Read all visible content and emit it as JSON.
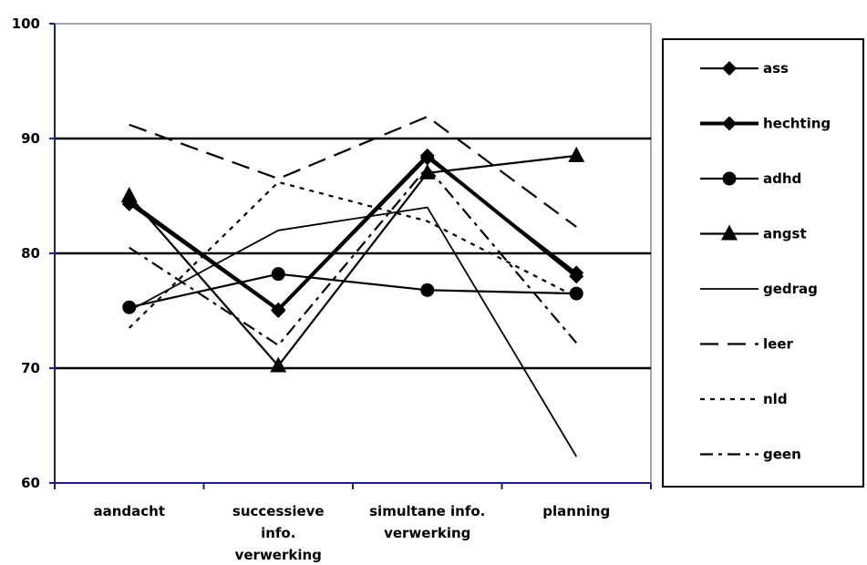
{
  "chart_data": {
    "type": "line",
    "title": "",
    "xlabel": "",
    "ylabel": "",
    "ylim": [
      60,
      100
    ],
    "y_ticks": [
      "60",
      "70",
      "80",
      "90",
      "100"
    ],
    "gridlines_y": [
      70,
      80,
      90
    ],
    "legend_position": "right",
    "categories": [
      [
        "aandacht"
      ],
      [
        "successieve",
        "info.",
        "verwerking"
      ],
      [
        "simultane info.",
        "verwerking"
      ],
      [
        "planning"
      ]
    ],
    "series": [
      {
        "name": "ass",
        "values": [
          84.3,
          75.0,
          88.3,
          78.3
        ],
        "marker": "diamond",
        "dash": "solid",
        "weight": "normal"
      },
      {
        "name": "hechting",
        "values": [
          84.5,
          75.1,
          88.5,
          78.0
        ],
        "marker": "diamond",
        "dash": "solid",
        "weight": "bold"
      },
      {
        "name": "adhd",
        "values": [
          75.3,
          78.2,
          76.8,
          76.5
        ],
        "marker": "circle",
        "dash": "solid",
        "weight": "normal"
      },
      {
        "name": "angst",
        "values": [
          85.0,
          70.2,
          87.0,
          88.5
        ],
        "marker": "triangle",
        "dash": "solid",
        "weight": "normal"
      },
      {
        "name": "gedrag",
        "values": [
          75.0,
          82.0,
          84.0,
          62.3
        ],
        "marker": "none",
        "dash": "solid",
        "weight": "thin"
      },
      {
        "name": "leer",
        "values": [
          91.2,
          86.5,
          91.9,
          82.3
        ],
        "marker": "none",
        "dash": "longdash",
        "weight": "normal"
      },
      {
        "name": "nld",
        "values": [
          73.5,
          86.2,
          82.8,
          76.2
        ],
        "marker": "none",
        "dash": "dot",
        "weight": "normal"
      },
      {
        "name": "geen",
        "values": [
          80.5,
          72.0,
          87.5,
          72.2
        ],
        "marker": "none",
        "dash": "dashdot",
        "weight": "normal"
      }
    ]
  }
}
